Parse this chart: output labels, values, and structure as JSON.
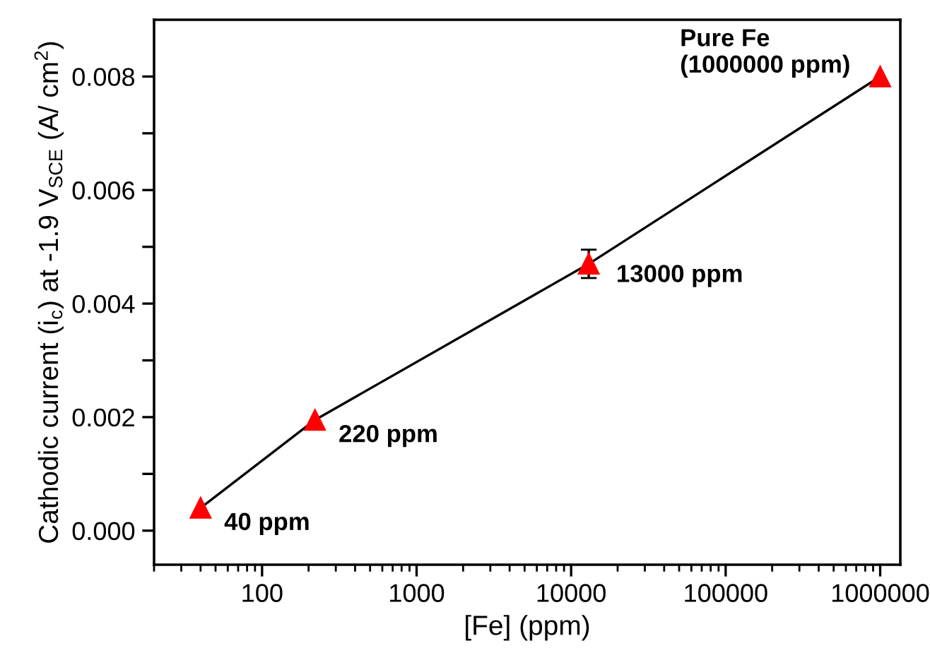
{
  "chart_data": {
    "type": "line",
    "xlabel": "[Fe] (ppm)",
    "ylabel": "Cathodic current (i$_{c}$) at -1.9 V$_{SCE}$ (A/ cm$^{2}$)",
    "x": [
      40,
      220,
      13000,
      1000000
    ],
    "series": [
      {
        "color": "#ff0000",
        "values": [
          0.0004,
          0.00195,
          0.0047,
          0.008
        ],
        "errors": [
          null,
          null,
          0.00025,
          null
        ]
      }
    ],
    "log": "x",
    "marker": "triangle",
    "line_style": "solid",
    "grid": false,
    "legend": false,
    "xlim": [
      20,
      1350000
    ],
    "xticks": [
      100,
      1000,
      10000,
      100000,
      1000000
    ],
    "ylim": [
      -0.0006,
      0.009
    ],
    "yticks": [
      {
        "value": 0,
        "label": "0.000"
      },
      {
        "value": 0.001,
        "label": null
      },
      {
        "value": 0.002,
        "label": "0.002"
      },
      {
        "value": 0.003,
        "label": null
      },
      {
        "value": 0.004,
        "label": "0.004"
      },
      {
        "value": 0.005,
        "label": null
      },
      {
        "value": 0.006,
        "label": "0.006"
      },
      {
        "value": 0.007,
        "label": null
      },
      {
        "value": 0.008,
        "label": "0.008"
      }
    ],
    "annotations": [
      {
        "text": "40 ppm",
        "x": 40,
        "y": 0.0004
      },
      {
        "text": "220 ppm",
        "x": 220,
        "y": 0.00195
      },
      {
        "text": "13000 ppm",
        "x": 13000,
        "y": 0.0047
      },
      {
        "text": "Pure Fe\n(1000000 ppm)",
        "x": 1000000,
        "y": 0.008
      }
    ]
  }
}
